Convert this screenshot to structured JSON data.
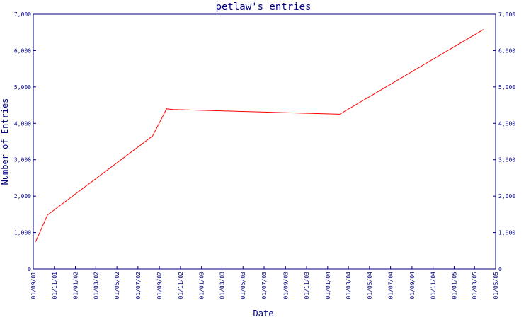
{
  "chart_data": {
    "type": "line",
    "title": "petlaw's entries",
    "xlabel": "Date",
    "ylabel": "Number of Entries",
    "x_type": "date",
    "xlim": [
      "2001-09-01",
      "2005-05-01"
    ],
    "ylim": [
      0,
      7000
    ],
    "yticks": [
      0,
      1000,
      2000,
      3000,
      4000,
      5000,
      6000,
      7000
    ],
    "ytick_labels": [
      "0",
      "1,000",
      "2,000",
      "3,000",
      "4,000",
      "5,000",
      "6,000",
      "7,000"
    ],
    "xticks": [
      "2001-09-01",
      "2001-11-01",
      "2002-01-01",
      "2002-03-01",
      "2002-05-01",
      "2002-07-01",
      "2002-09-01",
      "2002-11-01",
      "2003-01-01",
      "2003-03-01",
      "2003-05-01",
      "2003-07-01",
      "2003-09-01",
      "2003-11-01",
      "2004-01-01",
      "2004-03-01",
      "2004-05-01",
      "2004-07-01",
      "2004-09-01",
      "2004-11-01",
      "2005-01-01",
      "2005-03-01",
      "2005-05-01"
    ],
    "xtick_labels": [
      "01/09/01",
      "01/11/01",
      "01/01/02",
      "01/03/02",
      "01/05/02",
      "01/07/02",
      "01/09/02",
      "01/11/02",
      "01/01/03",
      "01/03/03",
      "01/05/03",
      "01/07/03",
      "01/09/03",
      "01/11/03",
      "01/01/04",
      "01/03/04",
      "01/05/04",
      "01/07/04",
      "01/09/04",
      "01/11/04",
      "01/01/05",
      "01/03/05",
      "01/05/05"
    ],
    "y_axis_right": true,
    "grid": false,
    "series": [
      {
        "color": "#ff0000",
        "x": [
          "2001-09-08",
          "2001-10-12",
          "2002-08-12",
          "2002-09-22",
          "2002-10-10",
          "2004-02-05",
          "2005-03-27"
        ],
        "y": [
          750,
          1480,
          3650,
          4400,
          4380,
          4250,
          6580
        ]
      }
    ]
  },
  "colors": {
    "axis": "#000080",
    "title": "#000080",
    "line": "#ff0000",
    "background": "#ffffff"
  }
}
